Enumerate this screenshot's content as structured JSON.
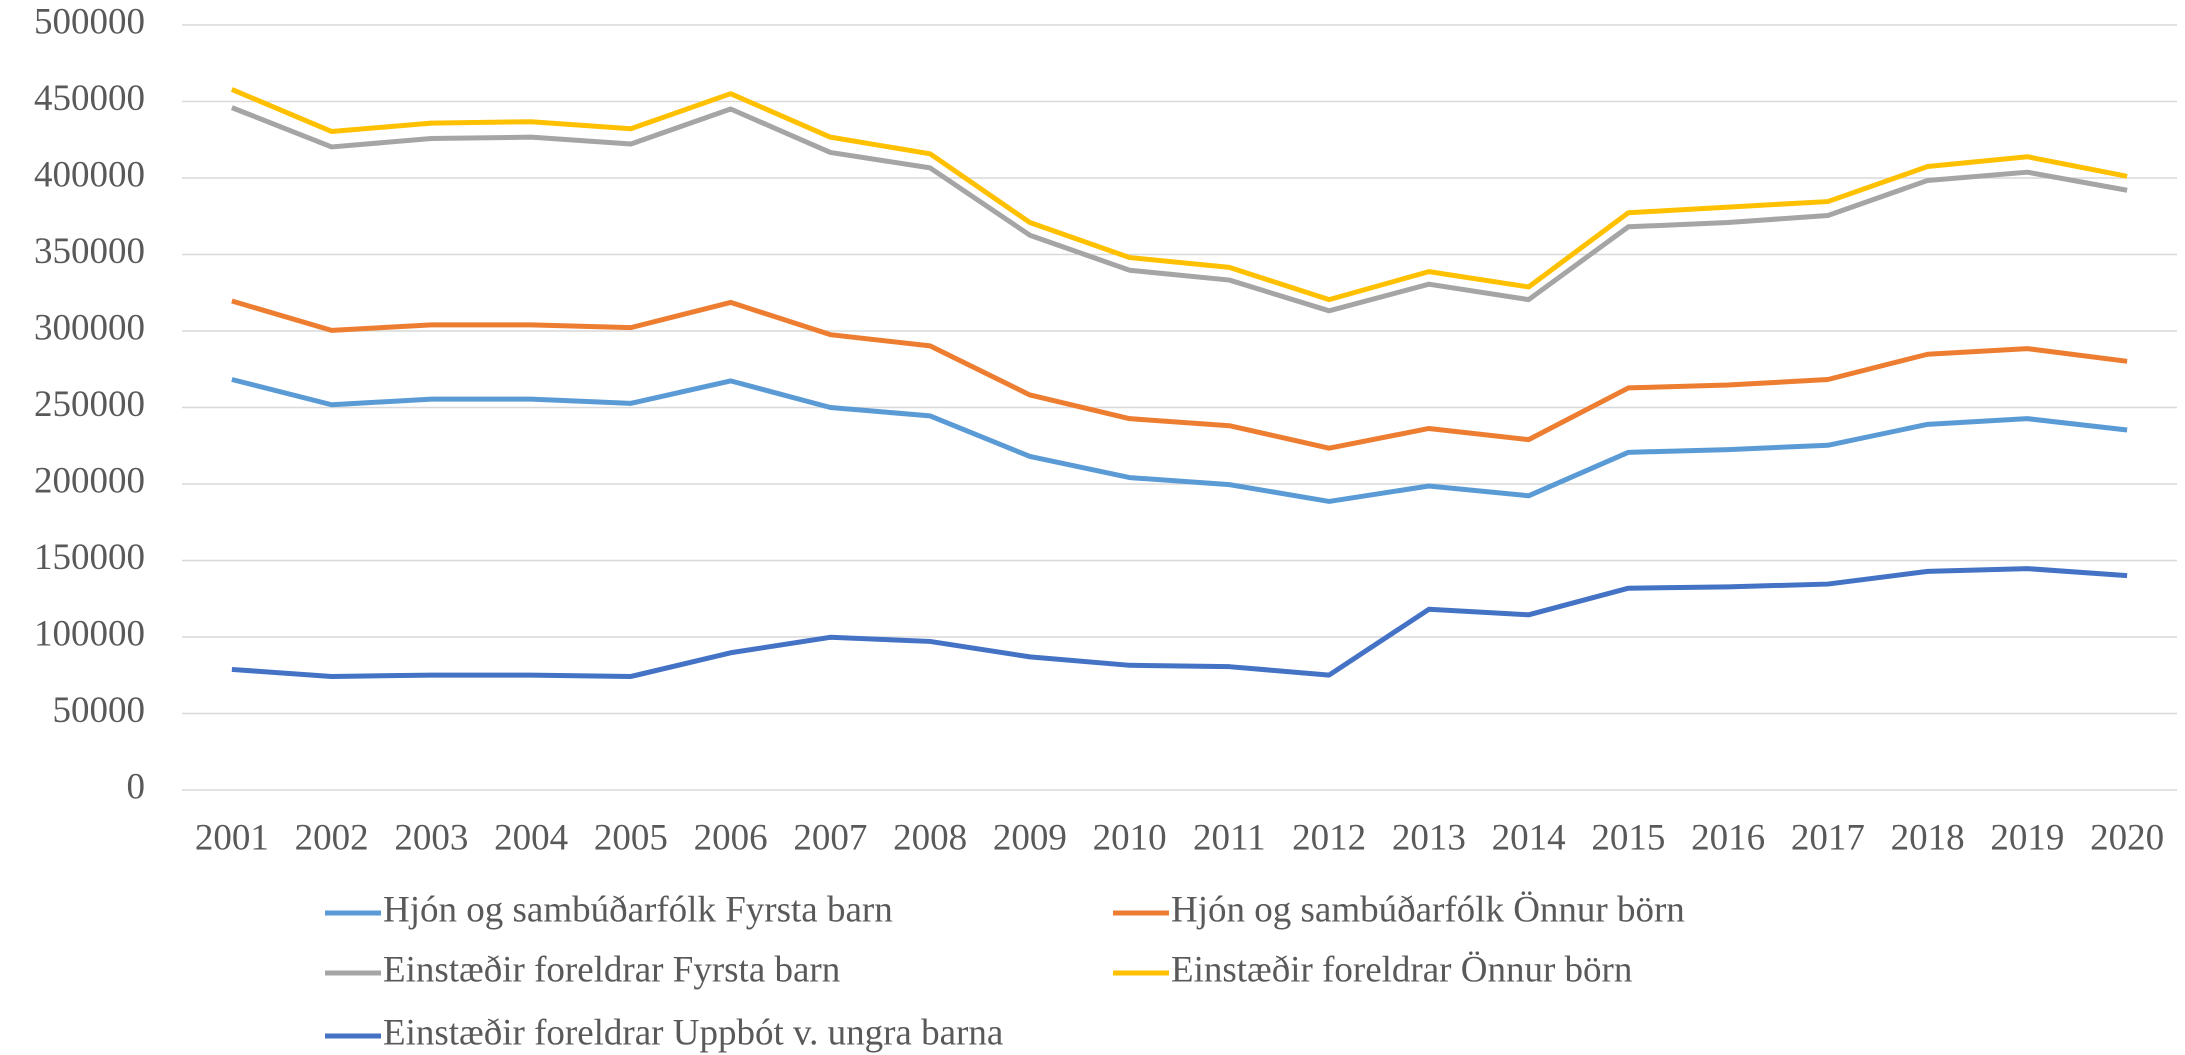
{
  "chart_data": {
    "type": "line",
    "categories": [
      "2001",
      "2002",
      "2003",
      "2004",
      "2005",
      "2006",
      "2007",
      "2008",
      "2009",
      "2010",
      "2011",
      "2012",
      "2013",
      "2014",
      "2015",
      "2016",
      "2017",
      "2018",
      "2019",
      "2020"
    ],
    "series": [
      {
        "name": "Hjón og sambúðarfólk Fyrsta barn",
        "color": "#5b9bd5",
        "values": [
          268300,
          251800,
          255500,
          255500,
          252700,
          267400,
          250000,
          244500,
          218000,
          204200,
          199600,
          188600,
          198700,
          192300,
          220700,
          222500,
          225300,
          239000,
          242700,
          235300
        ]
      },
      {
        "name": "Hjón og sambúðarfólk Önnur börn",
        "color": "#ed7d31",
        "values": [
          319600,
          300400,
          304000,
          304000,
          302200,
          318700,
          297600,
          290300,
          258200,
          242700,
          238100,
          223400,
          236300,
          229000,
          262800,
          264700,
          268300,
          284800,
          288500,
          280200
        ]
      },
      {
        "name": "Einstæðir foreldrar Fyrsta barn",
        "color": "#a5a5a5",
        "values": [
          446000,
          420300,
          425800,
          426700,
          422200,
          445100,
          416700,
          406600,
          362600,
          339700,
          333300,
          313200,
          330600,
          320500,
          368100,
          370900,
          375500,
          398400,
          403800,
          392000
        ]
      },
      {
        "name": "Einstæðir foreldrar Önnur börn",
        "color": "#ffc000",
        "values": [
          457900,
          430400,
          435900,
          436800,
          432200,
          455100,
          426700,
          415800,
          370900,
          348000,
          341600,
          320500,
          338800,
          328800,
          377300,
          381000,
          384600,
          407500,
          413900,
          401100
        ]
      },
      {
        "name": "Einstæðir foreldrar Uppbót v. ungra barna",
        "color": "#4472c4",
        "values": [
          78800,
          74200,
          75100,
          75100,
          74200,
          89700,
          99800,
          97100,
          87000,
          81500,
          80600,
          75100,
          118100,
          114500,
          131900,
          132800,
          134600,
          142900,
          144700,
          140100
        ]
      }
    ],
    "ylim": [
      0,
      500000
    ],
    "yticks": [
      0,
      50000,
      100000,
      150000,
      200000,
      250000,
      300000,
      350000,
      400000,
      450000,
      500000
    ],
    "grid": true
  }
}
